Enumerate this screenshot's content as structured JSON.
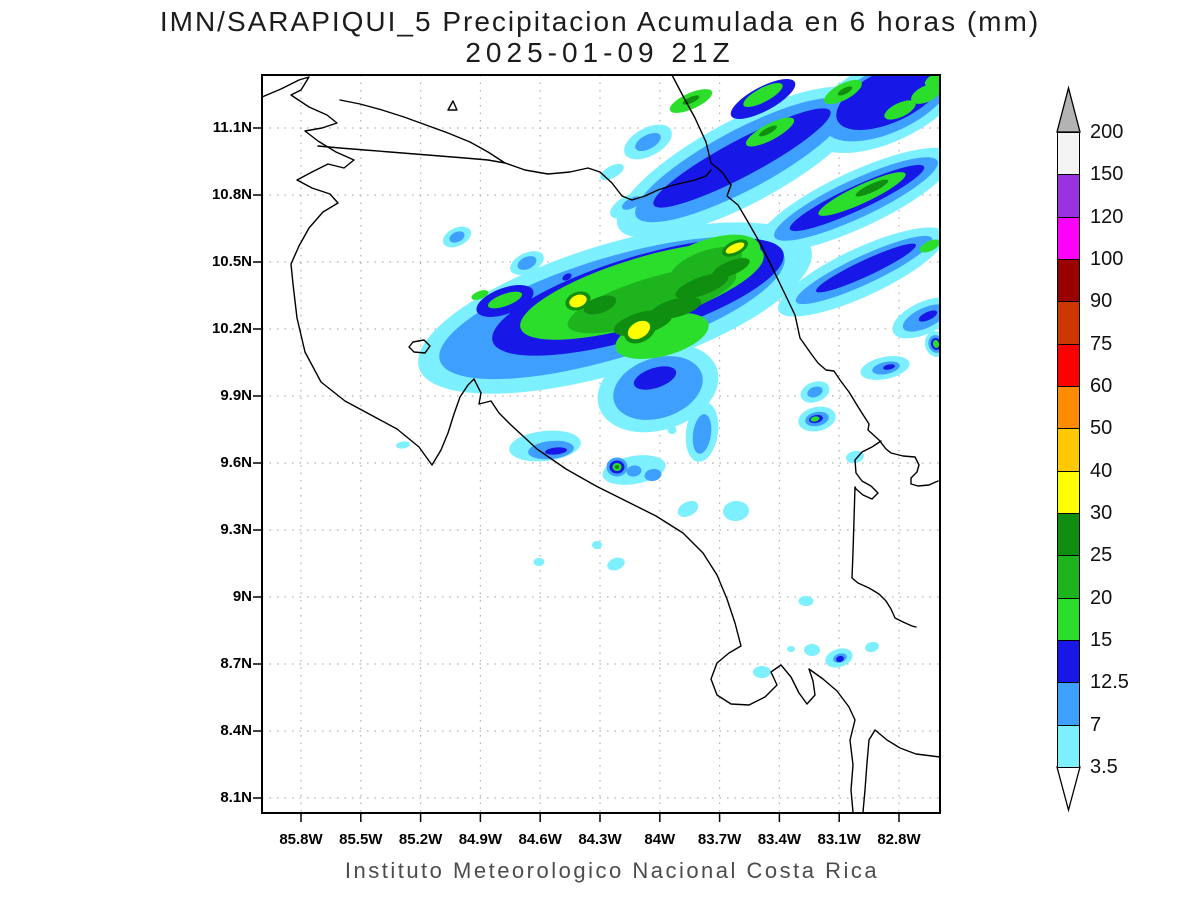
{
  "title": {
    "line1": "IMN/SARAPIQUI_5 Precipitacion Acumulada en 6 horas (mm)",
    "line2": "2025-01-09 21Z"
  },
  "caption": "Instituto Meteorologico Nacional Costa Rica",
  "axes": {
    "lat": [
      "11.1N",
      "10.8N",
      "10.5N",
      "10.2N",
      "9.9N",
      "9.6N",
      "9.3N",
      "9N",
      "8.7N",
      "8.4N",
      "8.1N"
    ],
    "lon": [
      "85.8W",
      "85.5W",
      "85.2W",
      "84.9W",
      "84.6W",
      "84.3W",
      "84W",
      "83.7W",
      "83.4W",
      "83.1W",
      "82.8W"
    ]
  },
  "colorbar": {
    "boundary_labels": [
      "3.5",
      "7",
      "12.5",
      "15",
      "20",
      "25",
      "30",
      "40",
      "50",
      "60",
      "75",
      "90",
      "100",
      "120",
      "150",
      "200"
    ],
    "segment_colors": [
      "#7df0ff",
      "#3f9fff",
      "#1717e8",
      "#2cde2c",
      "#1eb41e",
      "#0f8e0f",
      "#ffff00",
      "#ffc800",
      "#ff8c00",
      "#ff0000",
      "#cd3700",
      "#990000",
      "#ff00ff",
      "#9933e0",
      "#f4f4f4"
    ],
    "over_color": "#b3b3b3",
    "under_color": "#ffffff"
  },
  "palette": {
    "cyan": "#7df0ff",
    "blue": "#3f9fff",
    "dark_blue": "#1717e8",
    "green": "#2cde2c",
    "green_mid": "#1eb41e",
    "green_dark": "#0f8e0f",
    "yellow": "#ffff00"
  }
}
